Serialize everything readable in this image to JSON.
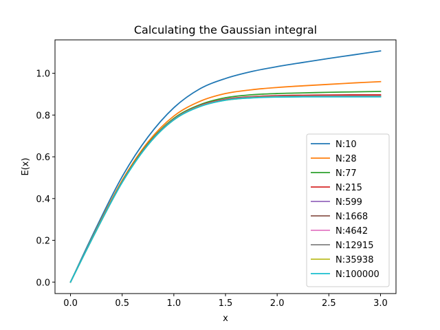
{
  "chart_data": {
    "type": "line",
    "title": "Calculating the Gaussian integral",
    "xlabel": "x",
    "ylabel": "E(x)",
    "xlim": [
      -0.15,
      3.15
    ],
    "ylim": [
      -0.055,
      1.16
    ],
    "xticks": [
      0.0,
      0.5,
      1.0,
      1.5,
      2.0,
      2.5,
      3.0
    ],
    "xtick_labels": [
      "0.0",
      "0.5",
      "1.0",
      "1.5",
      "2.0",
      "2.5",
      "3.0"
    ],
    "yticks": [
      0.0,
      0.2,
      0.4,
      0.6,
      0.8,
      1.0
    ],
    "ytick_labels": [
      "0.0",
      "0.2",
      "0.4",
      "0.6",
      "0.8",
      "1.0"
    ],
    "grid": false,
    "legend_position": "lower-right",
    "x": [
      0.0,
      0.25,
      0.5,
      0.75,
      1.0,
      1.25,
      1.5,
      1.75,
      2.0,
      2.25,
      2.5,
      2.75,
      3.0
    ],
    "series": [
      {
        "name": "N:10",
        "color": "#1f77b4",
        "values": [
          0.0,
          0.262,
          0.505,
          0.695,
          0.835,
          0.925,
          0.975,
          1.008,
          1.032,
          1.052,
          1.071,
          1.089,
          1.107
        ]
      },
      {
        "name": "N:28",
        "color": "#ff7f0e",
        "values": [
          0.0,
          0.252,
          0.487,
          0.671,
          0.795,
          0.865,
          0.903,
          0.921,
          0.932,
          0.94,
          0.947,
          0.954,
          0.96
        ]
      },
      {
        "name": "N:77",
        "color": "#2ca02c",
        "values": [
          0.0,
          0.249,
          0.482,
          0.663,
          0.784,
          0.849,
          0.883,
          0.897,
          0.903,
          0.906,
          0.909,
          0.911,
          0.913
        ]
      },
      {
        "name": "N:215",
        "color": "#d62728",
        "values": [
          0.0,
          0.248,
          0.48,
          0.66,
          0.78,
          0.845,
          0.876,
          0.888,
          0.893,
          0.895,
          0.896,
          0.897,
          0.897
        ]
      },
      {
        "name": "N:599",
        "color": "#9467bd",
        "values": [
          0.0,
          0.248,
          0.479,
          0.659,
          0.779,
          0.843,
          0.874,
          0.886,
          0.89,
          0.891,
          0.892,
          0.892,
          0.892
        ]
      },
      {
        "name": "N:1668",
        "color": "#8c564b",
        "values": [
          0.0,
          0.247,
          0.478,
          0.658,
          0.778,
          0.842,
          0.873,
          0.885,
          0.889,
          0.89,
          0.891,
          0.891,
          0.891
        ]
      },
      {
        "name": "N:4642",
        "color": "#e377c2",
        "values": [
          0.0,
          0.247,
          0.478,
          0.658,
          0.778,
          0.842,
          0.872,
          0.884,
          0.888,
          0.889,
          0.89,
          0.89,
          0.89
        ]
      },
      {
        "name": "N:12915",
        "color": "#7f7f7f",
        "values": [
          0.0,
          0.247,
          0.478,
          0.658,
          0.777,
          0.841,
          0.872,
          0.884,
          0.888,
          0.889,
          0.889,
          0.889,
          0.889
        ]
      },
      {
        "name": "N:35938",
        "color": "#bcbd22",
        "values": [
          0.0,
          0.247,
          0.478,
          0.657,
          0.777,
          0.841,
          0.871,
          0.883,
          0.887,
          0.888,
          0.888,
          0.888,
          0.888
        ]
      },
      {
        "name": "N:100000",
        "color": "#17becf",
        "values": [
          0.0,
          0.247,
          0.477,
          0.657,
          0.777,
          0.84,
          0.871,
          0.882,
          0.886,
          0.887,
          0.887,
          0.887,
          0.887
        ]
      }
    ]
  }
}
